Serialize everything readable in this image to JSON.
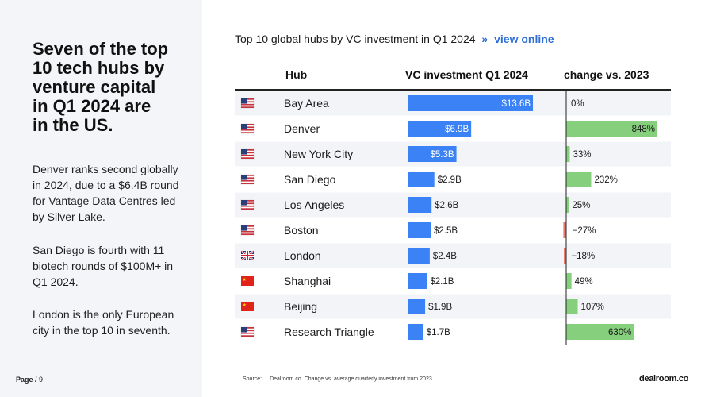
{
  "headline": "Seven of the top\n10 tech hubs by\nventure capital\nin Q1 2024 are\nin the US.",
  "paragraphs": [
    "Denver ranks second globally in 2024, due to a $6.4B round for Vantage Data Centres led by Silver Lake.",
    "San Diego is fourth with 11 biotech rounds of $100M+ in Q1 2024.",
    "London is the only European city in the top 10 in seventh."
  ],
  "page": {
    "label": "Page",
    "number": "/ 9"
  },
  "chart_header": {
    "title": "Top 10 global hubs by VC investment in Q1 2024",
    "link_arrow": "»",
    "link": "view online"
  },
  "source": {
    "label": "Source:",
    "text": "Dealroom.co. Change vs. average quarterly investment from 2023."
  },
  "logo": "dealroom.co",
  "colors": {
    "bar_blue": "#3b82f6",
    "change_green": "#86d07d",
    "change_red": "#ee7b72",
    "axis": "#222222",
    "row_alt": "#f3f4f7"
  },
  "chart_data": {
    "type": "table",
    "columns": [
      "Hub",
      "VC investment Q1 2024",
      "change vs. 2023"
    ],
    "rows": [
      {
        "flag": "US",
        "hub": "Bay Area",
        "investment": 13.6,
        "investment_label": "$13.6B",
        "change": 0,
        "change_label": "0%"
      },
      {
        "flag": "US",
        "hub": "Denver",
        "investment": 6.9,
        "investment_label": "$6.9B",
        "change": 848,
        "change_label": "848%"
      },
      {
        "flag": "US",
        "hub": "New York City",
        "investment": 5.3,
        "investment_label": "$5.3B",
        "change": 33,
        "change_label": "33%"
      },
      {
        "flag": "US",
        "hub": "San Diego",
        "investment": 2.9,
        "investment_label": "$2.9B",
        "change": 232,
        "change_label": "232%"
      },
      {
        "flag": "US",
        "hub": "Los Angeles",
        "investment": 2.6,
        "investment_label": "$2.6B",
        "change": 25,
        "change_label": "25%"
      },
      {
        "flag": "US",
        "hub": "Boston",
        "investment": 2.5,
        "investment_label": "$2.5B",
        "change": -27,
        "change_label": "−27%"
      },
      {
        "flag": "UK",
        "hub": "London",
        "investment": 2.4,
        "investment_label": "$2.4B",
        "change": -18,
        "change_label": "−18%"
      },
      {
        "flag": "CN",
        "hub": "Shanghai",
        "investment": 2.1,
        "investment_label": "$2.1B",
        "change": 49,
        "change_label": "49%"
      },
      {
        "flag": "CN",
        "hub": "Beijing",
        "investment": 1.9,
        "investment_label": "$1.9B",
        "change": 107,
        "change_label": "107%"
      },
      {
        "flag": "US",
        "hub": "Research Triangle",
        "investment": 1.7,
        "investment_label": "$1.7B",
        "change": 630,
        "change_label": "630%"
      }
    ],
    "investment_max": 13.6,
    "change_max": 848
  }
}
